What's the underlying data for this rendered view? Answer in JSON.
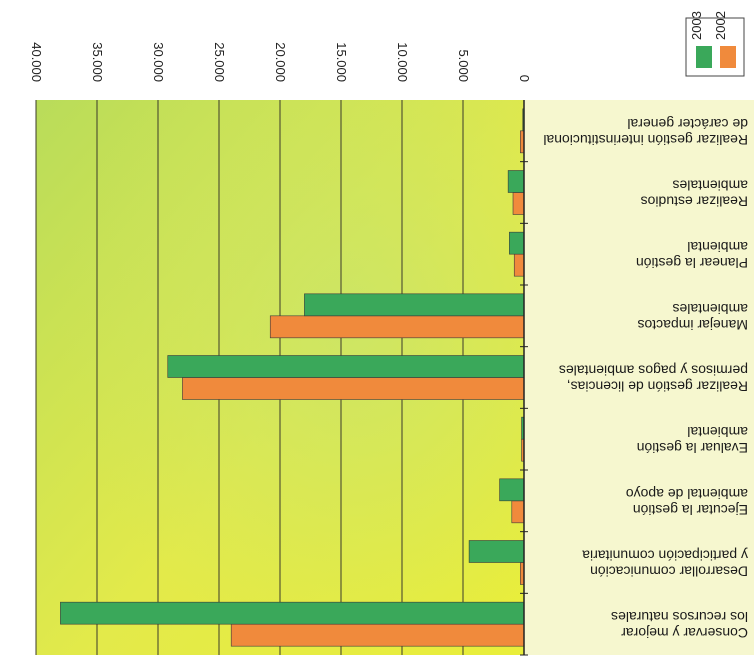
{
  "chart_data": {
    "type": "bar",
    "orientation": "horizontal",
    "categories": [
      "Conservar y mejorar los recursos naturales",
      "Desarrollar comunicación y participación comunitaria",
      "Ejecutar la gestión ambiental de apoyo",
      "Evaluar la gestión ambiental",
      "Realizar gestión de licencias, permisos y pagos ambientales",
      "Manejar impactos ambientales",
      "Planear la gestión ambiental",
      "Realizar estudios ambientales",
      "Realizar gestión interinstitucional de carácter general"
    ],
    "category_lines": [
      [
        "Conservar y mejorar",
        "los recursos naturales"
      ],
      [
        "Desarrollar comunicación",
        "y participación comunitaria"
      ],
      [
        "Ejecutar la gestión",
        "ambiental de apoyo"
      ],
      [
        "Evaluar la gestión",
        "ambiental"
      ],
      [
        "Realizar gestión de licencias,",
        "permisos y pagos ambientales"
      ],
      [
        "Manejar impactos",
        "ambientales"
      ],
      [
        "Planear la gestión",
        "ambiental"
      ],
      [
        "Realizar estudios",
        "ambientales"
      ],
      [
        "Realizar gestión interinstitucional",
        "de carácter general"
      ]
    ],
    "series": [
      {
        "name": "2002",
        "color": "#f08a3c",
        "values": [
          24000,
          300,
          1000,
          200,
          28000,
          20800,
          800,
          900,
          300
        ]
      },
      {
        "name": "2003",
        "color": "#3aa85a",
        "values": [
          38000,
          4500,
          2000,
          200,
          29200,
          18000,
          1200,
          1300,
          100
        ]
      }
    ],
    "xlim": [
      0,
      40000
    ],
    "ticks": [
      0,
      5000,
      10000,
      15000,
      20000,
      25000,
      30000,
      35000,
      40000
    ],
    "tick_labels": [
      "0",
      "5.000",
      "10.000",
      "15.000",
      "20.000",
      "25.000",
      "30.000",
      "35.000",
      "40.000"
    ],
    "grid": true,
    "legend_position": "bottom-left",
    "rotated_180": true
  }
}
